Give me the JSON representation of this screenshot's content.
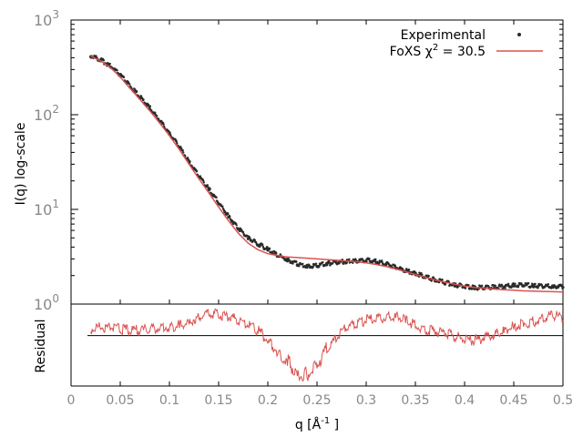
{
  "chart_data": [
    {
      "type": "scatter",
      "title": "",
      "xlabel": "q [Å -1 ]",
      "xlabel_parts": {
        "base": "q [Å",
        "sup": "-1",
        "tail": " ]"
      },
      "ylabel": "I(q) log-scale",
      "yscale": "log",
      "xlim": [
        0,
        0.5
      ],
      "ylim": [
        1,
        1000
      ],
      "xticks": [
        {
          "value": 0,
          "label": "0"
        },
        {
          "value": 0.05,
          "label": "0.05"
        },
        {
          "value": 0.1,
          "label": "0.1"
        },
        {
          "value": 0.15,
          "label": "0.15"
        },
        {
          "value": 0.2,
          "label": "0.2"
        },
        {
          "value": 0.25,
          "label": "0.25"
        },
        {
          "value": 0.3,
          "label": "0.3"
        },
        {
          "value": 0.35,
          "label": "0.35"
        },
        {
          "value": 0.4,
          "label": "0.4"
        },
        {
          "value": 0.45,
          "label": "0.45"
        },
        {
          "value": 0.5,
          "label": "0.5"
        }
      ],
      "yticks": [
        {
          "value": 1,
          "base": "10",
          "exp": "0"
        },
        {
          "value": 10,
          "base": "10",
          "exp": "1"
        },
        {
          "value": 100,
          "base": "10",
          "exp": "2"
        },
        {
          "value": 1000,
          "base": "10",
          "exp": "3"
        }
      ],
      "grid": false,
      "legend_position": "top-right",
      "series": [
        {
          "name": "Experimental",
          "style": "points",
          "color": "#2b2b2b",
          "x": [
            0.02,
            0.03,
            0.04,
            0.05,
            0.06,
            0.07,
            0.08,
            0.09,
            0.1,
            0.11,
            0.12,
            0.13,
            0.14,
            0.15,
            0.16,
            0.17,
            0.18,
            0.19,
            0.2,
            0.21,
            0.22,
            0.23,
            0.24,
            0.25,
            0.26,
            0.27,
            0.28,
            0.29,
            0.3,
            0.31,
            0.32,
            0.33,
            0.34,
            0.35,
            0.36,
            0.37,
            0.38,
            0.39,
            0.4,
            0.41,
            0.42,
            0.43,
            0.44,
            0.45,
            0.46,
            0.47,
            0.48,
            0.49,
            0.5
          ],
          "y": [
            410,
            370,
            320,
            255,
            195,
            150,
            115,
            85,
            62,
            45,
            31,
            22,
            16,
            11.5,
            8.3,
            6.2,
            4.9,
            4.2,
            3.7,
            3.2,
            2.85,
            2.6,
            2.45,
            2.5,
            2.6,
            2.7,
            2.75,
            2.8,
            2.82,
            2.75,
            2.6,
            2.4,
            2.2,
            2.05,
            1.9,
            1.75,
            1.65,
            1.55,
            1.5,
            1.45,
            1.45,
            1.47,
            1.5,
            1.55,
            1.55,
            1.52,
            1.5,
            1.5,
            1.5
          ]
        },
        {
          "name": "FoXS χ 2 = 30.5",
          "name_parts": {
            "base": "FoXS χ",
            "sup": "2",
            "tail": " = 30.5"
          },
          "style": "line",
          "color": "#d9534f",
          "x": [
            0.02,
            0.03,
            0.04,
            0.05,
            0.06,
            0.07,
            0.08,
            0.09,
            0.1,
            0.11,
            0.12,
            0.13,
            0.14,
            0.15,
            0.16,
            0.17,
            0.18,
            0.19,
            0.2,
            0.21,
            0.22,
            0.23,
            0.24,
            0.25,
            0.26,
            0.27,
            0.28,
            0.29,
            0.3,
            0.31,
            0.32,
            0.33,
            0.34,
            0.35,
            0.36,
            0.37,
            0.38,
            0.39,
            0.4,
            0.41,
            0.42,
            0.43,
            0.44,
            0.45,
            0.46,
            0.47,
            0.48,
            0.49,
            0.5
          ],
          "y": [
            415,
            370,
            315,
            250,
            190,
            145,
            110,
            82,
            60,
            43,
            30,
            21,
            15,
            10.6,
            7.6,
            5.6,
            4.4,
            3.75,
            3.4,
            3.25,
            3.15,
            3.1,
            3.05,
            3.0,
            2.95,
            2.9,
            2.85,
            2.8,
            2.72,
            2.62,
            2.5,
            2.35,
            2.2,
            2.05,
            1.92,
            1.8,
            1.7,
            1.62,
            1.55,
            1.5,
            1.47,
            1.44,
            1.42,
            1.4,
            1.38,
            1.37,
            1.36,
            1.35,
            1.34
          ]
        }
      ]
    },
    {
      "type": "line",
      "title": "",
      "ylabel": "Residual",
      "xlim": [
        0,
        0.5
      ],
      "ylim": [
        -4,
        2.5
      ],
      "reference_line": 0,
      "series": [
        {
          "name": "",
          "color": "#d9534f",
          "x": [
            0.02,
            0.03,
            0.04,
            0.05,
            0.06,
            0.07,
            0.08,
            0.09,
            0.1,
            0.11,
            0.12,
            0.13,
            0.14,
            0.15,
            0.16,
            0.17,
            0.18,
            0.19,
            0.2,
            0.21,
            0.22,
            0.23,
            0.24,
            0.25,
            0.26,
            0.27,
            0.28,
            0.29,
            0.3,
            0.31,
            0.32,
            0.33,
            0.34,
            0.35,
            0.36,
            0.37,
            0.38,
            0.39,
            0.4,
            0.41,
            0.42,
            0.43,
            0.44,
            0.45,
            0.46,
            0.47,
            0.48,
            0.49,
            0.5
          ],
          "y": [
            0.3,
            0.5,
            0.4,
            0.3,
            0.2,
            0.2,
            0.3,
            0.4,
            0.5,
            0.6,
            0.9,
            1.3,
            1.6,
            1.4,
            1.3,
            1.0,
            0.7,
            0.2,
            -0.6,
            -1.5,
            -2.4,
            -3.2,
            -3.4,
            -2.6,
            -1.4,
            -0.4,
            0.4,
            0.7,
            1.0,
            1.1,
            1.3,
            1.4,
            1.0,
            0.6,
            0.3,
            0.1,
            0.0,
            -0.3,
            -0.6,
            -0.6,
            -0.4,
            -0.1,
            0.2,
            0.5,
            0.7,
            0.9,
            1.1,
            1.4,
            1.2
          ]
        }
      ]
    }
  ]
}
